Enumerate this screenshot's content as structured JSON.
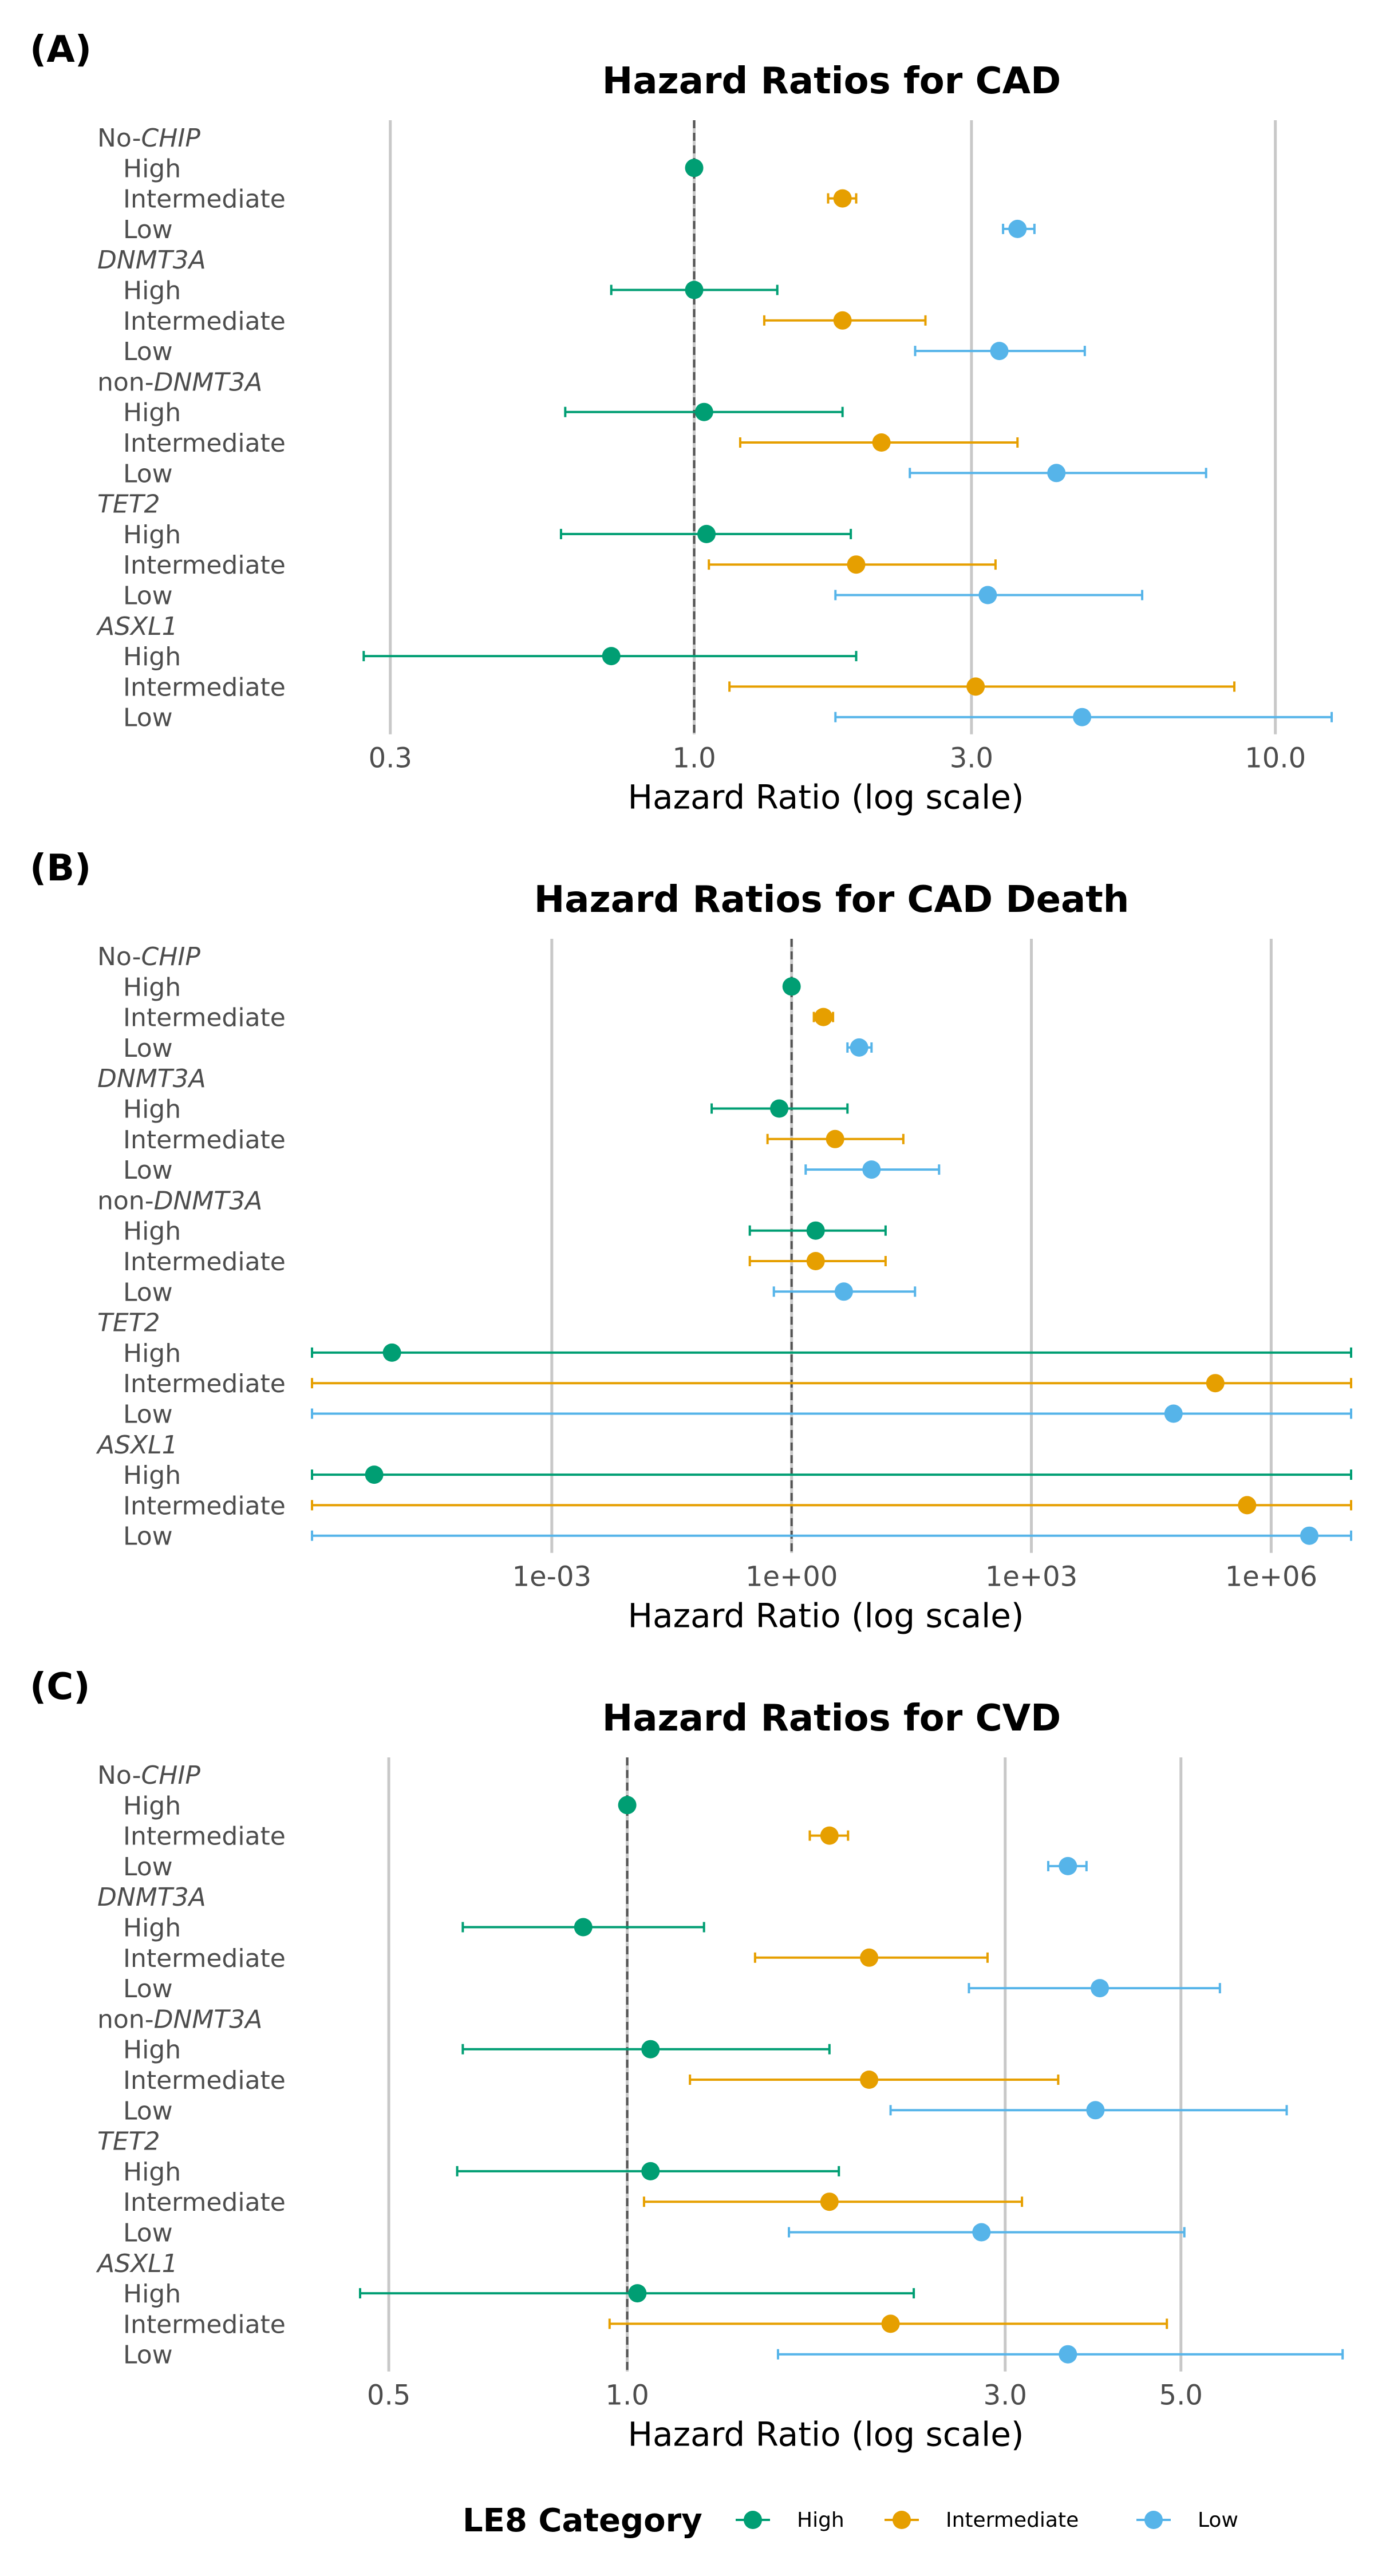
{
  "legend": {
    "title": "LE8 Category",
    "items": [
      {
        "label": "High",
        "color": "#009E73"
      },
      {
        "label": "Intermediate",
        "color": "#E69F00"
      },
      {
        "label": "Low",
        "color": "#56B4E9"
      }
    ]
  },
  "chart_data": [
    {
      "panel": "(A)",
      "type": "scatter",
      "title": "Hazard Ratios for CAD",
      "xlabel": "Hazard Ratio (log scale)",
      "x_scale": "log10",
      "xlim": [
        0.22,
        13.5
      ],
      "xticks": [
        {
          "value": 0.3,
          "label": "0.3"
        },
        {
          "value": 1.0,
          "label": "1.0"
        },
        {
          "value": 3.0,
          "label": "3.0"
        },
        {
          "value": 10.0,
          "label": "10.0"
        }
      ],
      "reference_line": 1.0,
      "groups": [
        {
          "prefix": "No-",
          "name": "CHIP",
          "rows": [
            {
              "cat": "High",
              "hr": 1.0,
              "lo": 1.0,
              "hi": 1.0
            },
            {
              "cat": "Intermediate",
              "hr": 1.8,
              "lo": 1.7,
              "hi": 1.9
            },
            {
              "cat": "Low",
              "hr": 3.6,
              "lo": 3.4,
              "hi": 3.85
            }
          ]
        },
        {
          "prefix": "",
          "name": "DNMT3A",
          "rows": [
            {
              "cat": "High",
              "hr": 1.0,
              "lo": 0.72,
              "hi": 1.39
            },
            {
              "cat": "Intermediate",
              "hr": 1.8,
              "lo": 1.32,
              "hi": 2.5
            },
            {
              "cat": "Low",
              "hr": 3.35,
              "lo": 2.4,
              "hi": 4.7
            }
          ]
        },
        {
          "prefix": "non-",
          "name": "DNMT3A",
          "rows": [
            {
              "cat": "High",
              "hr": 1.04,
              "lo": 0.6,
              "hi": 1.8
            },
            {
              "cat": "Intermediate",
              "hr": 2.1,
              "lo": 1.2,
              "hi": 3.6
            },
            {
              "cat": "Low",
              "hr": 4.2,
              "lo": 2.35,
              "hi": 7.6
            }
          ]
        },
        {
          "prefix": "",
          "name": "TET2",
          "rows": [
            {
              "cat": "High",
              "hr": 1.05,
              "lo": 0.59,
              "hi": 1.86
            },
            {
              "cat": "Intermediate",
              "hr": 1.9,
              "lo": 1.06,
              "hi": 3.3
            },
            {
              "cat": "Low",
              "hr": 3.2,
              "lo": 1.75,
              "hi": 5.9
            }
          ]
        },
        {
          "prefix": "",
          "name": "ASXL1",
          "rows": [
            {
              "cat": "High",
              "hr": 0.72,
              "lo": 0.27,
              "hi": 1.9
            },
            {
              "cat": "Intermediate",
              "hr": 3.05,
              "lo": 1.15,
              "hi": 8.5
            },
            {
              "cat": "Low",
              "hr": 4.65,
              "lo": 1.75,
              "hi": 12.5
            }
          ]
        }
      ]
    },
    {
      "panel": "(B)",
      "type": "scatter",
      "title": "Hazard Ratios for CAD Death",
      "xlabel": "Hazard Ratio (log scale)",
      "x_scale": "log10",
      "xlim": [
        1e-06,
        10000000.0
      ],
      "xticks": [
        {
          "value": 0.001,
          "label": "1e-03"
        },
        {
          "value": 1,
          "label": "1e+00"
        },
        {
          "value": 1000,
          "label": "1e+03"
        },
        {
          "value": 1000000,
          "label": "1e+06"
        }
      ],
      "reference_line": 1.0,
      "groups": [
        {
          "prefix": "No-",
          "name": "CHIP",
          "rows": [
            {
              "cat": "High",
              "hr": 1.0,
              "lo": 1.0,
              "hi": 1.0
            },
            {
              "cat": "Intermediate",
              "hr": 2.5,
              "lo": 1.9,
              "hi": 3.3
            },
            {
              "cat": "Low",
              "hr": 7.0,
              "lo": 5.0,
              "hi": 10.0
            }
          ]
        },
        {
          "prefix": "",
          "name": "DNMT3A",
          "rows": [
            {
              "cat": "High",
              "hr": 0.7,
              "lo": 0.1,
              "hi": 5.0
            },
            {
              "cat": "Intermediate",
              "hr": 3.5,
              "lo": 0.5,
              "hi": 25.0
            },
            {
              "cat": "Low",
              "hr": 10.0,
              "lo": 1.5,
              "hi": 70.0
            }
          ]
        },
        {
          "prefix": "non-",
          "name": "DNMT3A",
          "rows": [
            {
              "cat": "High",
              "hr": 2.0,
              "lo": 0.3,
              "hi": 15.0
            },
            {
              "cat": "Intermediate",
              "hr": 2.0,
              "lo": 0.3,
              "hi": 15.0
            },
            {
              "cat": "Low",
              "hr": 4.5,
              "lo": 0.6,
              "hi": 35.0
            }
          ]
        },
        {
          "prefix": "",
          "name": "TET2",
          "rows": [
            {
              "cat": "High",
              "hr": 1e-05,
              "lo": 1e-06,
              "hi": 10000000.0
            },
            {
              "cat": "Intermediate",
              "hr": 200000,
              "lo": 1e-06,
              "hi": 10000000.0
            },
            {
              "cat": "Low",
              "hr": 60000,
              "lo": 1e-06,
              "hi": 10000000.0
            }
          ]
        },
        {
          "prefix": "",
          "name": "ASXL1",
          "rows": [
            {
              "cat": "High",
              "hr": 6e-06,
              "lo": 1e-06,
              "hi": 10000000.0
            },
            {
              "cat": "Intermediate",
              "hr": 500000,
              "lo": 1e-06,
              "hi": 10000000.0
            },
            {
              "cat": "Low",
              "hr": 3000000,
              "lo": 1e-06,
              "hi": 10000000.0
            }
          ]
        }
      ]
    },
    {
      "panel": "(C)",
      "type": "scatter",
      "title": "Hazard Ratios for CVD",
      "xlabel": "Hazard Ratio (log scale)",
      "x_scale": "log10",
      "xlim": [
        0.4,
        8.2
      ],
      "xticks": [
        {
          "value": 0.5,
          "label": "0.5"
        },
        {
          "value": 1.0,
          "label": "1.0"
        },
        {
          "value": 3.0,
          "label": "3.0"
        },
        {
          "value": 5.0,
          "label": "5.0"
        }
      ],
      "reference_line": 1.0,
      "groups": [
        {
          "prefix": "No-",
          "name": "CHIP",
          "rows": [
            {
              "cat": "High",
              "hr": 1.0,
              "lo": 1.0,
              "hi": 1.0
            },
            {
              "cat": "Intermediate",
              "hr": 1.8,
              "lo": 1.7,
              "hi": 1.9
            },
            {
              "cat": "Low",
              "hr": 3.6,
              "lo": 3.4,
              "hi": 3.8
            }
          ]
        },
        {
          "prefix": "",
          "name": "DNMT3A",
          "rows": [
            {
              "cat": "High",
              "hr": 0.88,
              "lo": 0.62,
              "hi": 1.25
            },
            {
              "cat": "Intermediate",
              "hr": 2.02,
              "lo": 1.45,
              "hi": 2.85
            },
            {
              "cat": "Low",
              "hr": 3.95,
              "lo": 2.7,
              "hi": 5.6
            }
          ]
        },
        {
          "prefix": "non-",
          "name": "DNMT3A",
          "rows": [
            {
              "cat": "High",
              "hr": 1.07,
              "lo": 0.62,
              "hi": 1.8
            },
            {
              "cat": "Intermediate",
              "hr": 2.02,
              "lo": 1.2,
              "hi": 3.5
            },
            {
              "cat": "Low",
              "hr": 3.9,
              "lo": 2.15,
              "hi": 6.8
            }
          ]
        },
        {
          "prefix": "",
          "name": "TET2",
          "rows": [
            {
              "cat": "High",
              "hr": 1.07,
              "lo": 0.61,
              "hi": 1.85
            },
            {
              "cat": "Intermediate",
              "hr": 1.8,
              "lo": 1.05,
              "hi": 3.15
            },
            {
              "cat": "Low",
              "hr": 2.8,
              "lo": 1.6,
              "hi": 5.05
            }
          ]
        },
        {
          "prefix": "",
          "name": "ASXL1",
          "rows": [
            {
              "cat": "High",
              "hr": 1.03,
              "lo": 0.46,
              "hi": 2.3
            },
            {
              "cat": "Intermediate",
              "hr": 2.15,
              "lo": 0.95,
              "hi": 4.8
            },
            {
              "cat": "Low",
              "hr": 3.6,
              "lo": 1.55,
              "hi": 8.0
            }
          ]
        }
      ]
    }
  ]
}
